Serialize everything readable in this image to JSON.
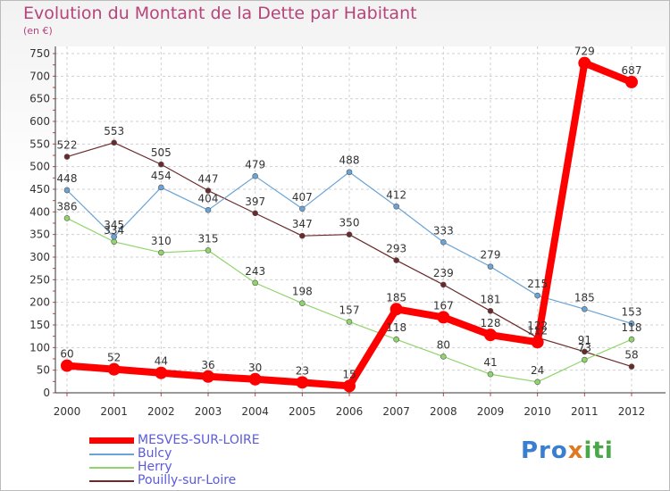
{
  "chart_data": {
    "type": "line",
    "title": "Evolution du Montant de la Dette par Habitant",
    "unit_label": "(en €)",
    "categories": [
      "2000",
      "2001",
      "2002",
      "2003",
      "2004",
      "2005",
      "2006",
      "2007",
      "2008",
      "2009",
      "2010",
      "2011",
      "2012"
    ],
    "y_ticks": [
      0,
      50,
      100,
      150,
      200,
      250,
      300,
      350,
      400,
      450,
      500,
      550,
      600,
      650,
      700,
      750
    ],
    "ylim": [
      0,
      750
    ],
    "grid": true,
    "series": [
      {
        "name": "MESVES-SUR-LOIRE",
        "color": "#ff0000",
        "values": [
          60,
          52,
          44,
          36,
          30,
          23,
          15,
          185,
          167,
          128,
          112,
          729,
          687
        ]
      },
      {
        "name": "Bulcy",
        "color": "#6aa3d5",
        "values": [
          448,
          345,
          454,
          404,
          479,
          407,
          488,
          412,
          333,
          279,
          215,
          185,
          153
        ]
      },
      {
        "name": "Herry",
        "color": "#8fd56a",
        "values": [
          386,
          334,
          310,
          315,
          243,
          198,
          157,
          118,
          80,
          41,
          24,
          73,
          118
        ]
      },
      {
        "name": "Pouilly-sur-Loire",
        "color": "#6b2a2a",
        "values": [
          522,
          553,
          505,
          447,
          397,
          347,
          350,
          293,
          239,
          181,
          122,
          91,
          58
        ]
      }
    ]
  },
  "logo": {
    "text_p": "Pro",
    "text_x": "x",
    "text_iti": "iti"
  }
}
